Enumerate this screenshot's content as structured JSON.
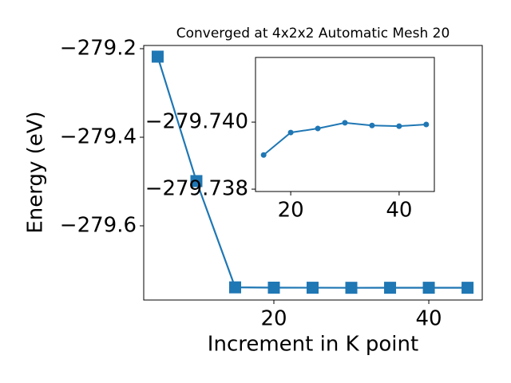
{
  "chart_data": [
    {
      "type": "line",
      "title": "Converged at 4x2x2 Automatic Mesh 20",
      "xlabel": "Increment in K point",
      "ylabel": "Energy (eV)",
      "x": [
        5,
        10,
        15,
        20,
        25,
        30,
        35,
        40,
        45
      ],
      "series": [
        {
          "color": "#1f77b4",
          "marker": "square",
          "values": [
            -279.218,
            -279.499,
            -279.73902,
            -279.73969,
            -279.73981,
            -279.73998,
            -279.7399,
            -279.73988,
            -279.73993
          ]
        }
      ],
      "xlim": [
        3.2,
        46.9
      ],
      "ylim": [
        -279.7676,
        -279.1928
      ],
      "xticks": [
        20,
        40
      ],
      "yticks": [
        {
          "value": -279.6,
          "label": "−279.6"
        },
        {
          "value": -279.4,
          "label": "−279.4"
        },
        {
          "value": -279.2,
          "label": "−279.2"
        }
      ]
    },
    {
      "type": "line",
      "x": [
        15,
        20,
        25,
        30,
        35,
        40,
        45
      ],
      "series": [
        {
          "color": "#1f77b4",
          "marker": "circle",
          "values": [
            -279.73902,
            -279.73969,
            -279.73981,
            -279.73998,
            -279.7399,
            -279.73988,
            -279.73993
          ]
        }
      ],
      "xlim": [
        13.5,
        46.5
      ],
      "ylim": [
        -279.73793,
        -279.74193
      ],
      "xticks": [
        20,
        40
      ],
      "yticks": [
        {
          "value": -279.738,
          "label": "−279.738"
        },
        {
          "value": -279.74,
          "label": "−279.740"
        }
      ]
    }
  ]
}
